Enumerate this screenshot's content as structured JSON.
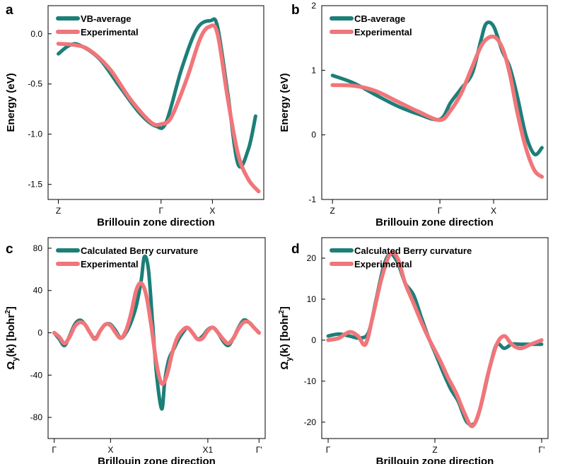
{
  "colors": {
    "calculated": "#1c7f78",
    "experimental": "#f0767a"
  },
  "chart_data": [
    {
      "id": "a",
      "panel_label": "a",
      "type": "line",
      "xlabel": "Brillouin zone direction",
      "ylabel": "Energy (eV)",
      "ylim": [
        -1.65,
        0.28
      ],
      "xlim": [
        -0.1,
        2.0
      ],
      "yticks": [
        {
          "value": 0.0,
          "label": "0.0"
        },
        {
          "value": -0.5,
          "label": "-0.5"
        },
        {
          "value": -1.0,
          "label": "-1.0"
        },
        {
          "value": -1.5,
          "label": "-1.5"
        }
      ],
      "xticks": [
        {
          "value": 0.0,
          "label": "Z"
        },
        {
          "value": 1.0,
          "label": "Γ"
        },
        {
          "value": 1.5,
          "label": "X"
        }
      ],
      "legend": "top-left",
      "series": [
        {
          "name": "VB-average",
          "color_key": "calculated",
          "x": [
            0.0,
            0.1,
            0.2,
            0.4,
            0.6,
            0.8,
            0.95,
            1.05,
            1.2,
            1.35,
            1.48,
            1.55,
            1.65,
            1.75,
            1.85,
            1.92
          ],
          "y": [
            -0.2,
            -0.12,
            -0.11,
            -0.25,
            -0.53,
            -0.8,
            -0.92,
            -0.88,
            -0.35,
            0.05,
            0.13,
            0.07,
            -0.6,
            -1.3,
            -1.15,
            -0.82
          ]
        },
        {
          "name": "Experimental",
          "color_key": "experimental",
          "x": [
            0.0,
            0.15,
            0.3,
            0.5,
            0.7,
            0.9,
            1.0,
            1.1,
            1.25,
            1.38,
            1.47,
            1.55,
            1.65,
            1.75,
            1.85,
            1.95
          ],
          "y": [
            -0.1,
            -0.11,
            -0.16,
            -0.35,
            -0.65,
            -0.88,
            -0.9,
            -0.83,
            -0.45,
            -0.05,
            0.07,
            0.0,
            -0.65,
            -1.2,
            -1.45,
            -1.57
          ]
        }
      ]
    },
    {
      "id": "b",
      "panel_label": "b",
      "type": "line",
      "xlabel": "Brillouin zone direction",
      "ylabel": "Energy (eV)",
      "ylim": [
        -1.0,
        2.0
      ],
      "xlim": [
        -0.1,
        2.0
      ],
      "yticks": [
        {
          "value": 2,
          "label": "2"
        },
        {
          "value": 1,
          "label": "1"
        },
        {
          "value": 0,
          "label": "0"
        },
        {
          "value": -1,
          "label": "-1"
        }
      ],
      "xticks": [
        {
          "value": 0.0,
          "label": "Z"
        },
        {
          "value": 1.0,
          "label": "Γ"
        },
        {
          "value": 1.5,
          "label": "X"
        }
      ],
      "legend": "top-left",
      "series": [
        {
          "name": "CB-average",
          "color_key": "calculated",
          "x": [
            0.0,
            0.2,
            0.4,
            0.6,
            0.8,
            1.0,
            1.1,
            1.2,
            1.3,
            1.38,
            1.43,
            1.5,
            1.58,
            1.65,
            1.72,
            1.8,
            1.88,
            1.95
          ],
          "y": [
            0.92,
            0.8,
            0.62,
            0.45,
            0.32,
            0.24,
            0.5,
            0.72,
            0.95,
            1.45,
            1.72,
            1.68,
            1.3,
            1.05,
            0.6,
            0.0,
            -0.3,
            -0.2
          ]
        },
        {
          "name": "Experimental",
          "color_key": "experimental",
          "x": [
            0.0,
            0.2,
            0.4,
            0.6,
            0.8,
            1.0,
            1.1,
            1.2,
            1.3,
            1.4,
            1.5,
            1.58,
            1.65,
            1.72,
            1.8,
            1.88,
            1.95
          ],
          "y": [
            0.77,
            0.76,
            0.68,
            0.52,
            0.36,
            0.23,
            0.38,
            0.65,
            1.05,
            1.42,
            1.52,
            1.35,
            0.95,
            0.35,
            -0.2,
            -0.55,
            -0.65
          ]
        }
      ]
    },
    {
      "id": "c",
      "panel_label": "c",
      "type": "line",
      "xlabel": "Brillouin zone direction",
      "ylabel": "Ω",
      "ylabel_sub": "y",
      "ylabel_rest": "(k) [bohr",
      "ylabel_sup": "2",
      "ylabel_end": "]",
      "ylim": [
        -100,
        90
      ],
      "xlim": [
        -0.06,
        2.06
      ],
      "yticks": [
        {
          "value": 80,
          "label": "80"
        },
        {
          "value": 40,
          "label": "40"
        },
        {
          "value": 0,
          "label": "0"
        },
        {
          "value": -40,
          "label": "-40"
        },
        {
          "value": -80,
          "label": "-80"
        }
      ],
      "xticks": [
        {
          "value": 0.0,
          "label": "Γ"
        },
        {
          "value": 0.55,
          "label": "X"
        },
        {
          "value": 1.5,
          "label": "X1"
        },
        {
          "value": 2.0,
          "label": "Γ'"
        }
      ],
      "legend": "top-left",
      "series": [
        {
          "name": "Calculated Berry curvature",
          "color_key": "calculated",
          "x": [
            0.0,
            0.05,
            0.1,
            0.15,
            0.2,
            0.25,
            0.3,
            0.35,
            0.4,
            0.45,
            0.5,
            0.55,
            0.6,
            0.65,
            0.7,
            0.75,
            0.8,
            0.85,
            0.88,
            0.92,
            0.96,
            1.0,
            1.05,
            1.08,
            1.12,
            1.17,
            1.22,
            1.27,
            1.3,
            1.35,
            1.4,
            1.45,
            1.5,
            1.55,
            1.6,
            1.65,
            1.7,
            1.75,
            1.8,
            1.85,
            1.9,
            1.95,
            2.0
          ],
          "y": [
            0,
            -6,
            -12,
            -3,
            8,
            12,
            8,
            0,
            -5,
            2,
            8,
            8,
            2,
            -5,
            0,
            10,
            25,
            50,
            72,
            60,
            10,
            -40,
            -72,
            -45,
            -25,
            -15,
            -5,
            2,
            5,
            0,
            -6,
            -3,
            3,
            5,
            0,
            -8,
            -12,
            -5,
            5,
            12,
            10,
            5,
            0
          ]
        },
        {
          "name": "Experimental",
          "color_key": "experimental",
          "x": [
            0.0,
            0.05,
            0.1,
            0.15,
            0.2,
            0.25,
            0.3,
            0.35,
            0.4,
            0.45,
            0.5,
            0.55,
            0.6,
            0.65,
            0.7,
            0.75,
            0.8,
            0.85,
            0.9,
            0.95,
            1.0,
            1.05,
            1.1,
            1.15,
            1.2,
            1.25,
            1.3,
            1.35,
            1.4,
            1.45,
            1.5,
            1.55,
            1.6,
            1.65,
            1.7,
            1.75,
            1.8,
            1.85,
            1.9,
            1.95,
            2.0
          ],
          "y": [
            0,
            -4,
            -10,
            -4,
            6,
            10,
            8,
            0,
            -6,
            2,
            8,
            7,
            0,
            -5,
            2,
            18,
            40,
            47,
            35,
            5,
            -30,
            -48,
            -40,
            -20,
            -5,
            2,
            5,
            0,
            -6,
            -5,
            2,
            5,
            0,
            -6,
            -10,
            -5,
            4,
            10,
            10,
            5,
            0
          ]
        }
      ]
    },
    {
      "id": "d",
      "panel_label": "d",
      "type": "line",
      "xlabel": "Brillouin zone direction",
      "ylabel": "Ω",
      "ylabel_sub": "y",
      "ylabel_rest": "(k) [bohr",
      "ylabel_sup": "2",
      "ylabel_end": "]",
      "ylim": [
        -24,
        25
      ],
      "xlim": [
        -0.06,
        2.06
      ],
      "yticks": [
        {
          "value": 20,
          "label": "20"
        },
        {
          "value": 10,
          "label": "10"
        },
        {
          "value": 0,
          "label": "0"
        },
        {
          "value": -10,
          "label": "-10"
        },
        {
          "value": -20,
          "label": "-20"
        }
      ],
      "xticks": [
        {
          "value": 0.0,
          "label": "Γ"
        },
        {
          "value": 1.0,
          "label": "Z"
        },
        {
          "value": 2.0,
          "label": "Γ'"
        }
      ],
      "legend": "top-left",
      "series": [
        {
          "name": "Calculated Berry curvature",
          "color_key": "calculated",
          "x": [
            0.0,
            0.1,
            0.2,
            0.3,
            0.38,
            0.45,
            0.52,
            0.58,
            0.65,
            0.72,
            0.8,
            0.88,
            0.95,
            1.0,
            1.08,
            1.15,
            1.22,
            1.3,
            1.38,
            1.45,
            1.52,
            1.58,
            1.65,
            1.72,
            1.8,
            1.9,
            2.0
          ],
          "y": [
            1,
            1.5,
            1,
            0.5,
            2,
            10,
            18,
            21,
            19,
            14,
            11,
            5,
            0,
            -3,
            -8,
            -12,
            -15,
            -20,
            -20,
            -14,
            -6,
            -1,
            -2,
            -1,
            -1,
            -1,
            -1
          ]
        },
        {
          "name": "Experimental",
          "color_key": "experimental",
          "x": [
            0.0,
            0.1,
            0.2,
            0.28,
            0.35,
            0.42,
            0.5,
            0.58,
            0.65,
            0.72,
            0.8,
            0.88,
            0.95,
            1.05,
            1.12,
            1.2,
            1.28,
            1.35,
            1.42,
            1.5,
            1.58,
            1.65,
            1.72,
            1.8,
            1.9,
            2.0
          ],
          "y": [
            0,
            0.5,
            2,
            1,
            -1,
            6,
            15,
            21,
            20,
            14,
            9,
            4,
            0,
            -5,
            -9,
            -13,
            -18,
            -21,
            -17,
            -8,
            -1,
            1,
            -1,
            -2,
            -1,
            0
          ]
        }
      ]
    }
  ]
}
